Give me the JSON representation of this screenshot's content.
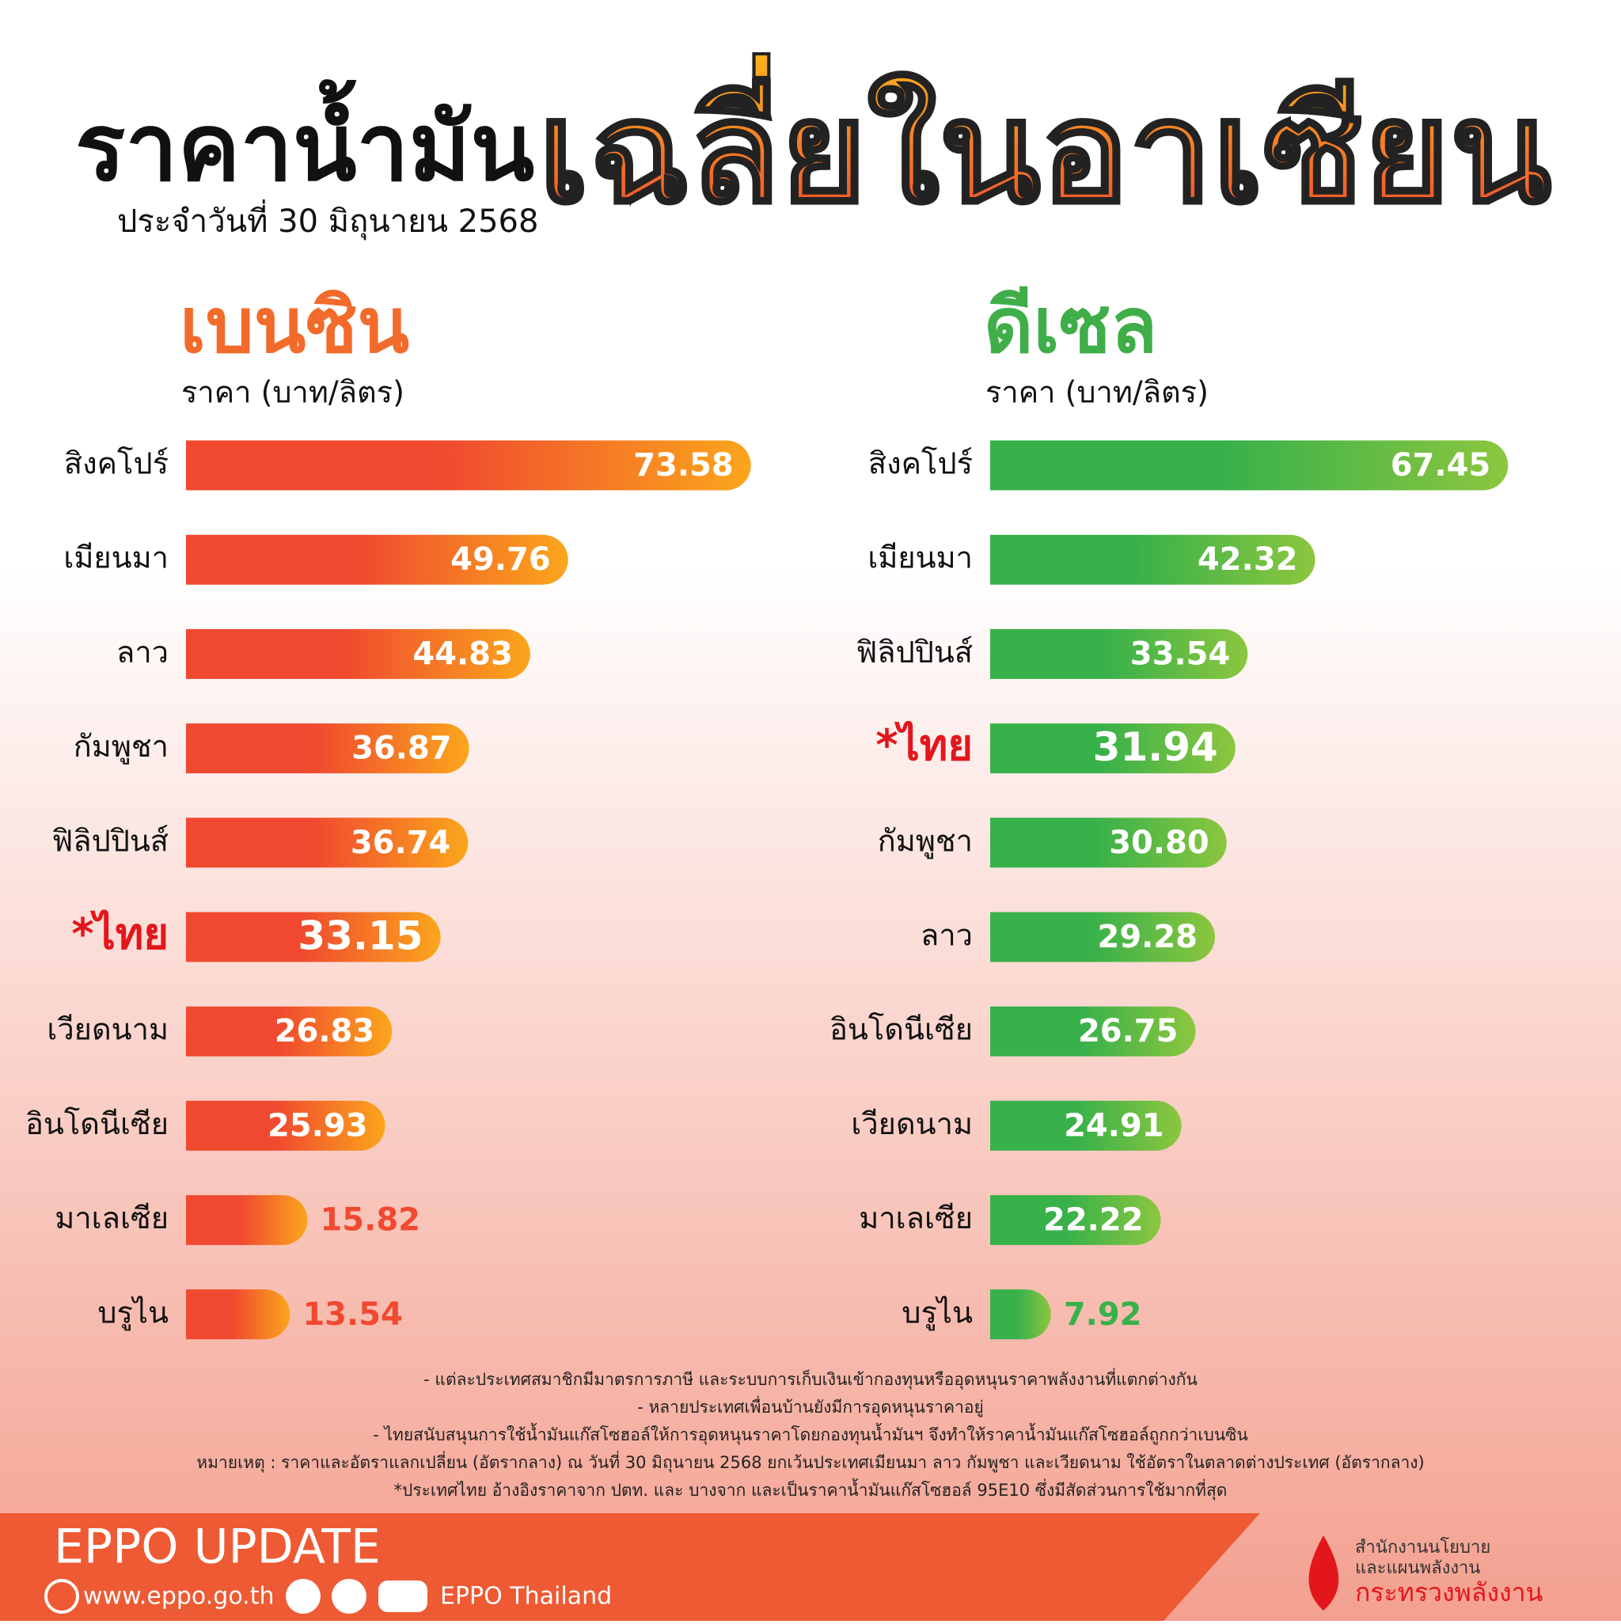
{
  "header": {
    "title_part1": "ราคาน้ำมัน",
    "title_part2": "เฉลี่ยในอาเซียน",
    "date": "ประจำวันที่  30 มิถุนายน 2568"
  },
  "chart_data": [
    {
      "type": "bar",
      "orientation": "horizontal",
      "title": "เบนซิน",
      "subtitle": "ราคา (บาท/ลิตร)",
      "title_color": "#f26b2a",
      "color": [
        "#f0492f",
        "#fba61c"
      ],
      "categories": [
        "สิงคโปร์",
        "เมียนมา",
        "ลาว",
        "กัมพูชา",
        "ฟิลิปปินส์",
        "*ไทย",
        "เวียดนาม",
        "อินโดนีเซีย",
        "มาเลเซีย",
        "บรูไน"
      ],
      "label_colors": [
        "#111111",
        "#111111",
        "#111111",
        "#111111",
        "#111111",
        "#e3161c",
        "#111111",
        "#111111",
        "#111111",
        "#111111"
      ],
      "values": [
        73.58,
        49.76,
        44.83,
        36.87,
        36.74,
        33.15,
        26.83,
        25.93,
        15.82,
        13.54
      ]
    },
    {
      "type": "bar",
      "orientation": "horizontal",
      "title": "ดีเซล",
      "subtitle": "ราคา (บาท/ลิตร)",
      "title_color": "#3fae49",
      "color": [
        "#38b14a",
        "#8cc63f"
      ],
      "categories": [
        "สิงคโปร์",
        "เมียนมา",
        "ฟิลิปปินส์",
        "*ไทย",
        "กัมพูชา",
        "ลาว",
        "อินโดนีเซีย",
        "เวียดนาม",
        "มาเลเซีย",
        "บรูไน"
      ],
      "label_colors": [
        "#111111",
        "#111111",
        "#111111",
        "#e3161c",
        "#111111",
        "#111111",
        "#111111",
        "#111111",
        "#111111",
        "#111111"
      ],
      "values": [
        67.45,
        42.32,
        33.54,
        31.94,
        30.8,
        29.28,
        26.75,
        24.91,
        22.22,
        7.92
      ],
      "value_labels": [
        "67.45",
        "42.32",
        "33.54",
        "31.94",
        "30.80",
        "29.28",
        "26.75",
        "24.91",
        "22.22",
        "7.92"
      ]
    }
  ],
  "notes": [
    "- แต่ละประเทศสมาชิกมีมาตรการภาษี และระบบการเก็บเงินเข้ากองทุนหรืออุดหนุนราคาพลังงานที่แตกต่างกัน",
    "- หลายประเทศเพื่อนบ้านยังมีการอุดหนุนราคาอยู่",
    "- ไทยสนับสนุนการใช้น้ำมันแก๊สโซฮอล์ให้การอุดหนุนราคาโดยกองทุนน้ำมันฯ จึงทำให้ราคาน้ำมันแก๊สโซฮอล์ถูกกว่าเบนซิน",
    "หมายเหตุ :   ราคาและอัตราแลกเปลี่ยน (อัตรากลาง) ณ วันที่ 30 มิถุนายน 2568 ยกเว้นประเทศเมียนมา ลาว กัมพูชา และเวียดนาม ใช้อัตราในตลาดต่างประเทศ (อัตรากลาง)",
    "*ประเทศไทย อ้างอิงราคาจาก ปตท. และ บางจาก และเป็นราคาน้ำมันแก๊สโซฮอล์ 95E10 ซึ่งมีสัดส่วนการใช้มากที่สุด"
  ],
  "footer": {
    "brand": "EPPO UPDATE",
    "website": "www.eppo.go.th",
    "social": "EPPO Thailand",
    "org": [
      "สำนักงานนโยบาย",
      "และแผนพลังงาน",
      "กระทรวงพลังงาน"
    ]
  }
}
